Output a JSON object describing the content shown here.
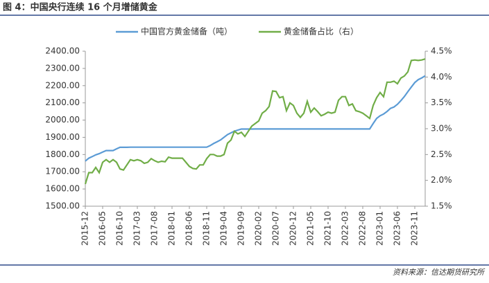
{
  "chart_data": {
    "type": "line",
    "title": "图 4：中国央行连续 16 个月增储黄金",
    "source": "资料来源：信达期货研究所",
    "categories": [
      "2015-12",
      null,
      null,
      null,
      null,
      "2016-05",
      null,
      null,
      null,
      null,
      "2016-10",
      null,
      null,
      null,
      null,
      "2017-03",
      null,
      null,
      null,
      null,
      "2017-08",
      null,
      null,
      null,
      null,
      "2018-01",
      null,
      null,
      null,
      null,
      "2018-06",
      null,
      null,
      null,
      null,
      "2018-11",
      null,
      null,
      null,
      null,
      "2019-04",
      null,
      null,
      null,
      null,
      "2019-09",
      null,
      null,
      null,
      null,
      "2020-02",
      null,
      null,
      null,
      null,
      "2020-07",
      null,
      null,
      null,
      null,
      "2020-12",
      null,
      null,
      null,
      null,
      "2021-05",
      null,
      null,
      null,
      null,
      "2021-10",
      null,
      null,
      null,
      null,
      "2022-03",
      null,
      null,
      null,
      null,
      "2022-08",
      null,
      null,
      null,
      null,
      "2023-01",
      null,
      null,
      null,
      null,
      "2023-06",
      null,
      null,
      null,
      null,
      "2023-11",
      null,
      null,
      null
    ],
    "series": [
      {
        "name": "中国官方黄金储备（吨）",
        "color": "#5b9bd5",
        "values": [
          1762,
          1779,
          1788,
          1798,
          1805,
          1814,
          1823,
          1823,
          1823,
          1833,
          1842,
          1842,
          1842,
          1842.6,
          1842.6,
          1842.6,
          1842.6,
          1842.6,
          1842.6,
          1842.6,
          1842.6,
          1842.6,
          1842.6,
          1842.6,
          1842.6,
          1842.6,
          1842.6,
          1842.6,
          1842.6,
          1842.6,
          1842.6,
          1842.6,
          1842.6,
          1842.6,
          1842.6,
          1842.6,
          1852,
          1864,
          1874,
          1885,
          1900,
          1916,
          1926,
          1936,
          1942,
          1948,
          1948,
          1948,
          1948,
          1948.3,
          1948.3,
          1948.3,
          1948.3,
          1948.3,
          1948.3,
          1948.3,
          1948.3,
          1948.3,
          1948.3,
          1948.3,
          1948.3,
          1948.3,
          1948.3,
          1948.3,
          1948.3,
          1948.3,
          1948.3,
          1948.3,
          1948.3,
          1948.3,
          1948.3,
          1948.3,
          1948.3,
          1948.3,
          1948.3,
          1948.3,
          1948.3,
          1948.3,
          1948.3,
          1948.3,
          1948.3,
          1948.3,
          1948.3,
          1980,
          2010,
          2025,
          2035,
          2050,
          2068,
          2076,
          2092,
          2113,
          2137,
          2165,
          2192,
          2218,
          2235,
          2245,
          2257
        ]
      },
      {
        "name": "黄金储备占比（右）",
        "color": "#70ad47",
        "axis": "y2",
        "values": [
          1.93,
          2.15,
          2.15,
          2.25,
          2.15,
          2.35,
          2.4,
          2.35,
          2.4,
          2.35,
          2.22,
          2.2,
          2.3,
          2.4,
          2.38,
          2.4,
          2.38,
          2.33,
          2.35,
          2.42,
          2.38,
          2.35,
          2.37,
          2.36,
          2.45,
          2.43,
          2.43,
          2.43,
          2.43,
          2.35,
          2.27,
          2.23,
          2.22,
          2.3,
          2.3,
          2.42,
          2.5,
          2.5,
          2.47,
          2.47,
          2.5,
          2.72,
          2.78,
          2.95,
          2.9,
          2.93,
          2.85,
          2.95,
          3.05,
          3.1,
          3.15,
          3.3,
          3.35,
          3.43,
          3.73,
          3.72,
          3.6,
          3.62,
          3.35,
          3.5,
          3.45,
          3.3,
          3.22,
          3.3,
          3.53,
          3.32,
          3.4,
          3.33,
          3.25,
          3.28,
          3.32,
          3.3,
          3.32,
          3.55,
          3.62,
          3.62,
          3.45,
          3.48,
          3.35,
          3.33,
          3.3,
          3.25,
          3.2,
          3.45,
          3.6,
          3.7,
          3.62,
          3.9,
          3.9,
          3.92,
          3.87,
          3.98,
          4.02,
          4.1,
          4.32,
          4.33,
          4.32,
          4.33,
          4.35
        ]
      }
    ],
    "ylim": [
      1500,
      2400
    ],
    "yticks": [
      {
        "value": 1500,
        "label": "1500.00"
      },
      {
        "value": 1600,
        "label": "1600.00"
      },
      {
        "value": 1700,
        "label": "1700.00"
      },
      {
        "value": 1800,
        "label": "1800.00"
      },
      {
        "value": 1900,
        "label": "1900.00"
      },
      {
        "value": 2000,
        "label": "2000.00"
      },
      {
        "value": 2100,
        "label": "2100.00"
      },
      {
        "value": 2200,
        "label": "2200.00"
      },
      {
        "value": 2300,
        "label": "2300.00"
      },
      {
        "value": 2400,
        "label": "2400.00"
      }
    ],
    "y2lim": [
      1.5,
      4.5
    ],
    "y2ticks": [
      {
        "value": 1.5,
        "label": "1.5%"
      },
      {
        "value": 2,
        "label": "2.0%"
      },
      {
        "value": 2.5,
        "label": "2.5%"
      },
      {
        "value": 3,
        "label": "3.0%"
      },
      {
        "value": 3.5,
        "label": "3.5%"
      },
      {
        "value": 4,
        "label": "4.0%"
      },
      {
        "value": 4.5,
        "label": "4.5%"
      }
    ],
    "legend": "top",
    "grid": false
  }
}
